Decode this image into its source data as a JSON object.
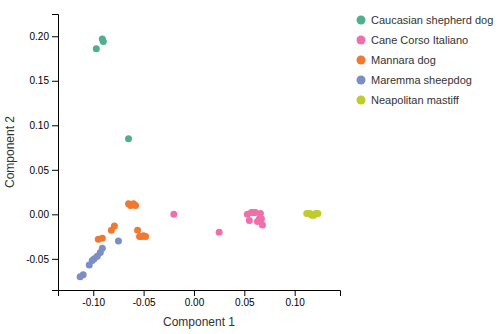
{
  "chart_data": {
    "type": "scatter",
    "xlabel": "Component 1",
    "ylabel": "Component 2",
    "xlim": [
      -0.135,
      0.145
    ],
    "ylim": [
      -0.085,
      0.225
    ],
    "xticks": [
      {
        "value": -0.1,
        "label": "-0.10"
      },
      -0.05,
      {
        "value": 0.0,
        "label": "0.00"
      },
      0.05,
      {
        "value": 0.1,
        "label": "0.10"
      }
    ],
    "yticks": [
      -0.05,
      {
        "value": 0.0,
        "label": "0.00"
      },
      0.05,
      {
        "value": 0.1,
        "label": "0.10"
      },
      0.15,
      {
        "value": 0.2,
        "label": "0.20"
      }
    ],
    "legend": "right",
    "series": [
      {
        "name": "Caucasian shepherd dog",
        "color": "#4DAF8D",
        "x": [
          -0.097,
          -0.091,
          -0.09,
          -0.065
        ],
        "values": [
          0.186,
          0.197,
          0.194,
          0.085
        ]
      },
      {
        "name": "Cane Corso Italiano",
        "color": "#F06FAB",
        "x": [
          -0.02,
          0.025,
          0.053,
          0.055,
          0.057,
          0.059,
          0.061,
          0.063,
          0.065,
          0.066,
          0.067,
          0.068
        ],
        "values": [
          0.0,
          -0.02,
          0.0,
          -0.007,
          0.002,
          0.002,
          0.002,
          -0.008,
          -0.005,
          0.001,
          -0.005,
          -0.012
        ]
      },
      {
        "name": "Mannara dog",
        "color": "#F07830",
        "x": [
          -0.095,
          -0.091,
          -0.082,
          -0.079,
          -0.065,
          -0.063,
          -0.06,
          -0.058,
          -0.056,
          -0.054,
          -0.052,
          -0.05,
          -0.048
        ],
        "values": [
          -0.028,
          -0.027,
          -0.018,
          -0.013,
          0.012,
          0.01,
          0.012,
          0.01,
          -0.018,
          -0.025,
          -0.025,
          -0.024,
          -0.025
        ]
      },
      {
        "name": "Maremma sheepdog",
        "color": "#7B8FC7",
        "x": [
          -0.113,
          -0.11,
          -0.104,
          -0.101,
          -0.099,
          -0.096,
          -0.093,
          -0.091,
          -0.075
        ],
        "values": [
          -0.07,
          -0.068,
          -0.057,
          -0.052,
          -0.05,
          -0.047,
          -0.043,
          -0.038,
          -0.03
        ]
      },
      {
        "name": "Neapolitan mastiff",
        "color": "#BFCC2A",
        "x": [
          0.112,
          0.115,
          0.117,
          0.119,
          0.121,
          0.123
        ],
        "values": [
          0.001,
          0.001,
          -0.001,
          -0.001,
          0.001,
          0.001
        ]
      }
    ]
  }
}
